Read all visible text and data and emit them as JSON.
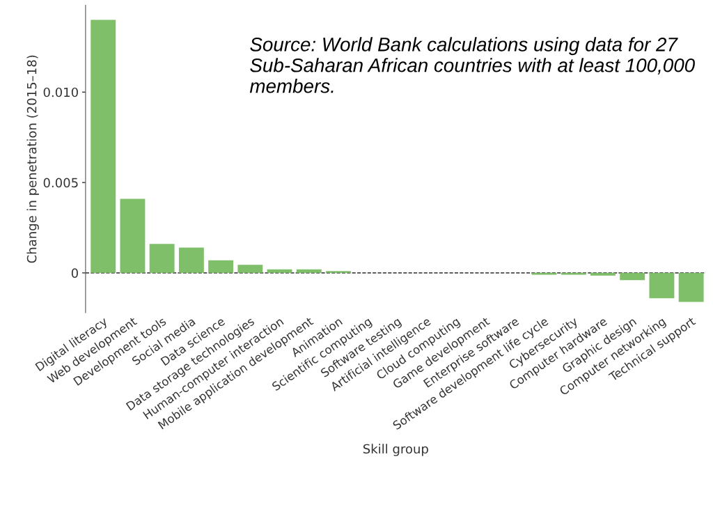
{
  "chart_data": {
    "type": "bar",
    "categories": [
      "Digital literacy",
      "Web development",
      "Development tools",
      "Social media",
      "Data science",
      "Data storage technologies",
      "Human-computer interaction",
      "Mobile application development",
      "Animation",
      "Scientific computing",
      "Software testing",
      "Artificial intelligence",
      "Cloud computing",
      "Game development",
      "Enterprise software",
      "Software development life cycle",
      "Cybersecurity",
      "Computer hardware",
      "Graphic design",
      "Computer networking",
      "Technical support"
    ],
    "values": [
      0.014,
      0.0041,
      0.0016,
      0.0014,
      0.0007,
      0.00045,
      0.0002,
      0.0002,
      0.0001,
      0,
      0,
      0,
      0,
      0,
      0,
      -0.0001,
      -0.0001,
      -0.00015,
      -0.0004,
      -0.0014,
      -0.0016
    ],
    "color": "#7fbf6a",
    "ylim": [
      -0.0022,
      0.0148
    ],
    "yticks": [
      {
        "value": 0,
        "label": "0"
      },
      {
        "value": 0.005,
        "label": "0.005"
      },
      {
        "value": 0.01,
        "label": "0.010"
      }
    ],
    "xlabel": "Skill group",
    "ylabel": "Change in penetration (2015–18)",
    "ref_lines": [
      {
        "axis": "y",
        "value": 0,
        "color": "#000000",
        "line_style": "dashed"
      }
    ],
    "annotations": [
      "Source: World Bank calculations using data for 27 Sub-Saharan African countries with at least 100,000 members."
    ],
    "grid": false
  }
}
